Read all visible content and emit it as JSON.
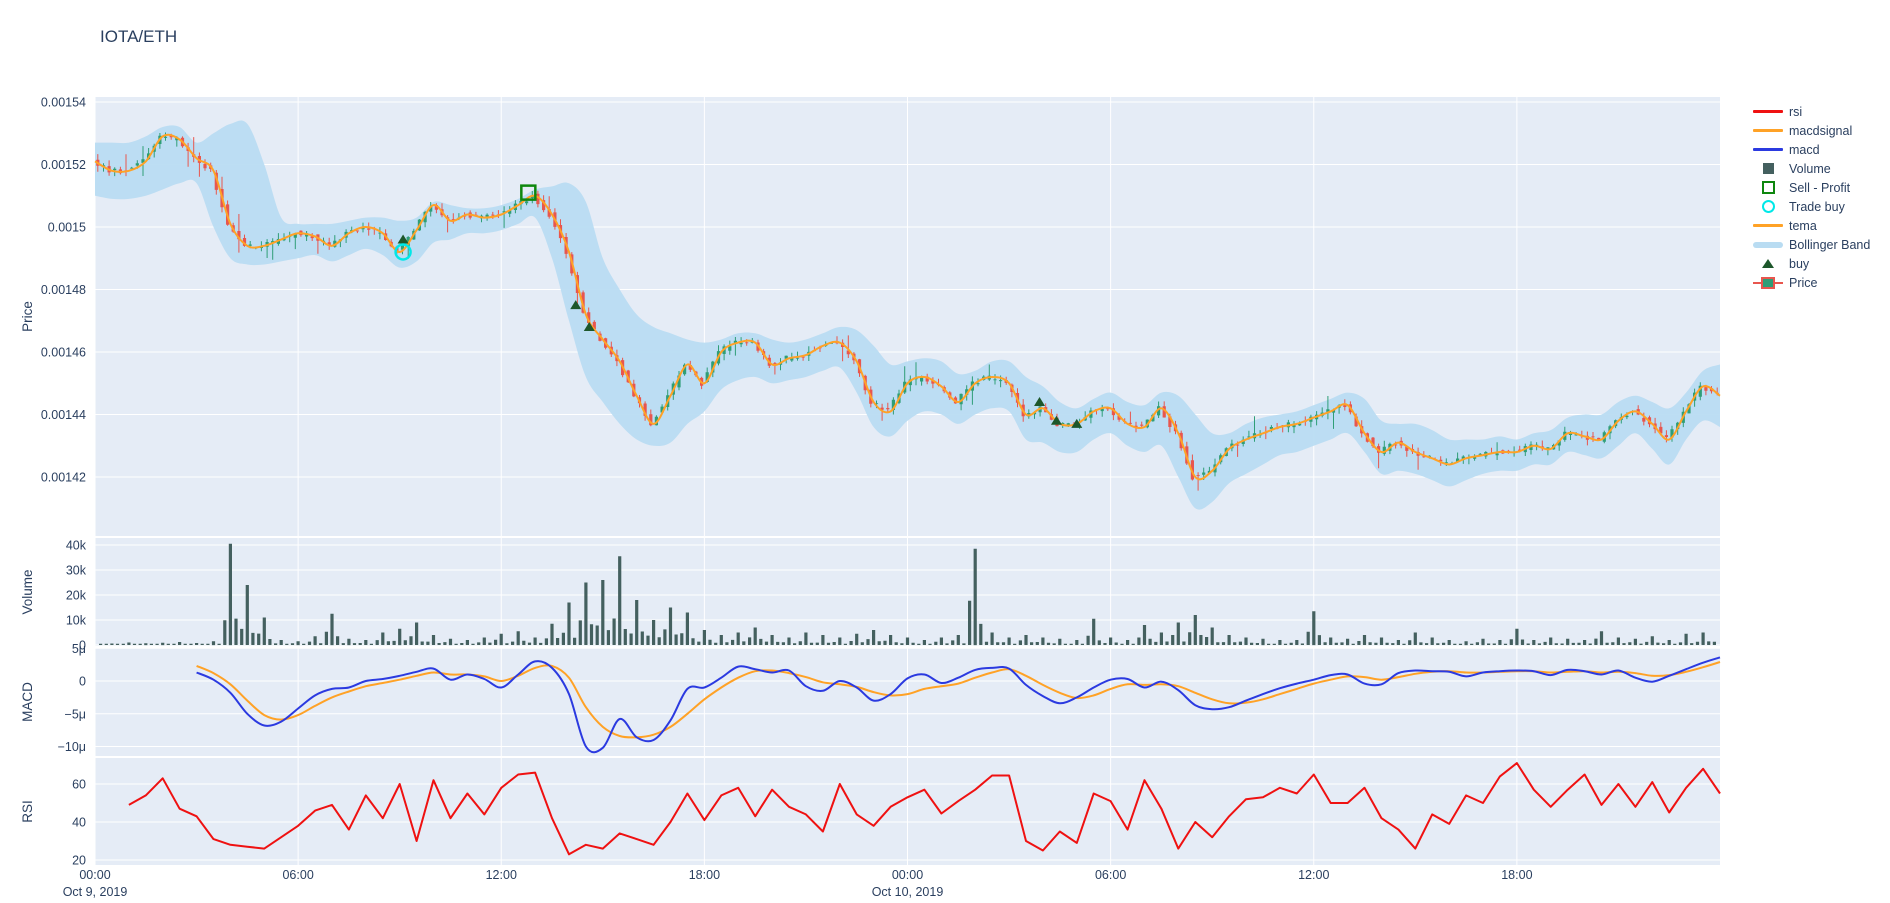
{
  "title": "IOTA/ETH",
  "colors": {
    "text": "#2a3f5f",
    "panel_bg": "#E5ECF6",
    "grid": "#ffffff",
    "candle_up": "#2f9e77",
    "candle_down": "#e8564e",
    "tema": "#ffa226",
    "macd": "#2b3ae0",
    "macdsignal": "#ffa226",
    "rsi": "#ef1111",
    "volume_bar": "#44605f",
    "bollinger": "#b9dcf2",
    "buy_marker": "#1d572b",
    "sell_marker": "#0e870e",
    "trade_buy_marker": "#00e8e8"
  },
  "legend": {
    "items": [
      {
        "label": "rsi",
        "type": "line",
        "color": "#ef1111"
      },
      {
        "label": "macdsignal",
        "type": "line",
        "color": "#ffa226"
      },
      {
        "label": "macd",
        "type": "line",
        "color": "#2b3ae0"
      },
      {
        "label": "Volume",
        "type": "square-filled",
        "color": "#44605f"
      },
      {
        "label": "Sell - Profit",
        "type": "square-open",
        "color": "#0e870e"
      },
      {
        "label": "Trade buy",
        "type": "circle-open",
        "color": "#00e8e8"
      },
      {
        "label": "tema",
        "type": "line",
        "color": "#ffa226"
      },
      {
        "label": "Bollinger Band",
        "type": "band",
        "color": "#b9dcf2"
      },
      {
        "label": "buy",
        "type": "triangle",
        "color": "#1d572b"
      },
      {
        "label": "Price",
        "type": "candlestick",
        "color": "#2f9e77"
      }
    ]
  },
  "axes": {
    "price": {
      "title": "Price",
      "ticks": [
        {
          "label": "0.00154",
          "micro": 1540
        },
        {
          "label": "0.00152",
          "micro": 1520
        },
        {
          "label": "0.0015",
          "micro": 1500
        },
        {
          "label": "0.00148",
          "micro": 1480
        },
        {
          "label": "0.00146",
          "micro": 1460
        },
        {
          "label": "0.00144",
          "micro": 1440
        },
        {
          "label": "0.00142",
          "micro": 1420
        }
      ]
    },
    "volume": {
      "title": "Volume",
      "ticks": [
        {
          "label": "40k",
          "k": 40
        },
        {
          "label": "30k",
          "k": 30
        },
        {
          "label": "20k",
          "k": 20
        },
        {
          "label": "10k",
          "k": 10
        },
        {
          "label": "0",
          "k": 0
        }
      ]
    },
    "macd": {
      "title": "MACD",
      "ticks": [
        {
          "label": "5μ",
          "v": 5
        },
        {
          "label": "0",
          "v": 0
        },
        {
          "label": "−5μ",
          "v": -5
        },
        {
          "label": "−10μ",
          "v": -10
        }
      ]
    },
    "rsi": {
      "title": "RSI",
      "ticks": [
        {
          "label": "60",
          "v": 60
        },
        {
          "label": "40",
          "v": 40
        },
        {
          "label": "20",
          "v": 20
        }
      ]
    },
    "x": {
      "ticks": [
        {
          "hour": 0,
          "label": "00:00"
        },
        {
          "hour": 6,
          "label": "06:00"
        },
        {
          "hour": 12,
          "label": "12:00"
        },
        {
          "hour": 18,
          "label": "18:00"
        },
        {
          "hour": 24,
          "label": "00:00"
        },
        {
          "hour": 30,
          "label": "06:00"
        },
        {
          "hour": 36,
          "label": "12:00"
        },
        {
          "hour": 42,
          "label": "18:00"
        }
      ],
      "dates": [
        {
          "hour": 0,
          "label": "Oct 9, 2019"
        },
        {
          "hour": 24,
          "label": "Oct 10, 2019"
        }
      ]
    }
  },
  "chart_data": {
    "type": "candlestick-multi-panel",
    "title": "IOTA/ETH",
    "x_unit": "hours since Oct 9, 2019 00:00",
    "x_range_hours": [
      0,
      48
    ],
    "sample_step_hours": 0.5,
    "price_unit": "1e-6 ETH (micro)",
    "panels": [
      "Price",
      "Volume",
      "MACD",
      "RSI"
    ],
    "price_axis_range_micro": [
      1401,
      1541
    ],
    "volume_axis_range_k": [
      0,
      43
    ],
    "macd_axis_range_micro": [
      -11.5,
      5.2
    ],
    "rsi_axis_range": [
      17,
      74
    ],
    "series": {
      "close_micro": [
        1521,
        1518,
        1518,
        1521,
        1529,
        1528,
        1522,
        1518,
        1501,
        1494,
        1494,
        1496,
        1498,
        1497,
        1494,
        1498,
        1500,
        1498,
        1492,
        1499,
        1507,
        1502,
        1504,
        1503,
        1504,
        1507,
        1510,
        1504,
        1492,
        1472,
        1464,
        1457,
        1446,
        1437,
        1446,
        1456,
        1450,
        1460,
        1463,
        1463,
        1456,
        1458,
        1459,
        1462,
        1463,
        1457,
        1444,
        1441,
        1450,
        1452,
        1449,
        1444,
        1450,
        1452,
        1450,
        1440,
        1442,
        1437,
        1437,
        1441,
        1442,
        1437,
        1436,
        1442,
        1434,
        1420,
        1422,
        1429,
        1432,
        1434,
        1436,
        1437,
        1439,
        1441,
        1443,
        1434,
        1428,
        1431,
        1428,
        1426,
        1424,
        1426,
        1427,
        1428,
        1428,
        1430,
        1429,
        1434,
        1433,
        1432,
        1438,
        1441,
        1437,
        1432,
        1441,
        1449,
        1446
      ],
      "boll_upper_micro": [
        1527,
        1527,
        1527,
        1529,
        1532,
        1532,
        1527,
        1530,
        1533,
        1533,
        1520,
        1503,
        1501,
        1501,
        1501,
        1502,
        1503,
        1503,
        1502,
        1503,
        1508,
        1507,
        1506,
        1506,
        1507,
        1509,
        1512,
        1513,
        1514,
        1508,
        1490,
        1480,
        1472,
        1468,
        1466,
        1464,
        1463,
        1464,
        1466,
        1466,
        1464,
        1463,
        1464,
        1466,
        1468,
        1467,
        1462,
        1456,
        1457,
        1458,
        1457,
        1453,
        1454,
        1457,
        1457,
        1452,
        1449,
        1444,
        1442,
        1445,
        1447,
        1444,
        1443,
        1447,
        1446,
        1440,
        1434,
        1434,
        1437,
        1439,
        1440,
        1441,
        1443,
        1445,
        1447,
        1445,
        1438,
        1437,
        1437,
        1435,
        1432,
        1432,
        1432,
        1433,
        1432,
        1434,
        1435,
        1439,
        1440,
        1440,
        1444,
        1446,
        1444,
        1442,
        1447,
        1454,
        1456
      ],
      "boll_lower_micro": [
        1510,
        1509,
        1509,
        1510,
        1512,
        1514,
        1514,
        1500,
        1490,
        1488,
        1488,
        1489,
        1490,
        1491,
        1489,
        1491,
        1493,
        1491,
        1487,
        1489,
        1495,
        1496,
        1498,
        1498,
        1499,
        1501,
        1503,
        1490,
        1470,
        1452,
        1444,
        1437,
        1432,
        1430,
        1431,
        1437,
        1441,
        1448,
        1451,
        1452,
        1450,
        1451,
        1452,
        1454,
        1455,
        1447,
        1436,
        1433,
        1438,
        1441,
        1440,
        1437,
        1440,
        1442,
        1441,
        1432,
        1431,
        1428,
        1428,
        1432,
        1434,
        1430,
        1428,
        1430,
        1420,
        1410,
        1412,
        1418,
        1421,
        1424,
        1427,
        1428,
        1430,
        1432,
        1434,
        1428,
        1421,
        1422,
        1421,
        1419,
        1417,
        1419,
        1421,
        1422,
        1422,
        1424,
        1424,
        1428,
        1427,
        1426,
        1430,
        1434,
        1429,
        1424,
        1432,
        1438,
        1436
      ],
      "volume_k": [
        0.8,
        0.6,
        1,
        0.7,
        0.9,
        1.2,
        0.8,
        1.5,
        40.5,
        24,
        11,
        2,
        1.5,
        3.5,
        12.5,
        2.5,
        2,
        5,
        6.5,
        9,
        4,
        2.5,
        2,
        3,
        4.5,
        5.5,
        3,
        8.5,
        17,
        25,
        26,
        35.5,
        18,
        10,
        15,
        13,
        6,
        4,
        5,
        7,
        4,
        3,
        5,
        4,
        3,
        4.5,
        6,
        4,
        3,
        2,
        3,
        4,
        38.5,
        5,
        3,
        4,
        3,
        2.5,
        2,
        10.5,
        3,
        2,
        8,
        5,
        9,
        12,
        7,
        4,
        3,
        2.5,
        2,
        2,
        13.5,
        3,
        2.5,
        4,
        3,
        2,
        5,
        3,
        2,
        1.5,
        2.5,
        2,
        6.5,
        2,
        3,
        2.5,
        2,
        5.5,
        3,
        2.5,
        3.5,
        2,
        4.5,
        5,
        3
      ],
      "macd_micro": [
        null,
        null,
        null,
        null,
        null,
        null,
        1.3,
        0.2,
        -1.8,
        -5,
        -6.8,
        -6.2,
        -4.2,
        -2.2,
        -1.2,
        -1,
        0,
        0.3,
        0.8,
        1.4,
        1.9,
        0.2,
        1,
        0.3,
        -1,
        1,
        3,
        2,
        -2,
        -10,
        -10.2,
        -5.8,
        -8.6,
        -9,
        -6,
        -1.2,
        -1,
        0.5,
        2.2,
        1.8,
        1.3,
        1.6,
        -0.8,
        -1.5,
        0,
        -1,
        -3,
        -2,
        0.4,
        1,
        -0.3,
        0.5,
        1.7,
        2,
        1.9,
        -0.6,
        -2.3,
        -3.4,
        -2.5,
        -1,
        0.2,
        0.3,
        -1,
        -0.1,
        -1.4,
        -3.7,
        -4.3,
        -4,
        -3,
        -2,
        -1.1,
        -0.4,
        0.2,
        0.9,
        1,
        -0.4,
        -0.5,
        1.2,
        1.6,
        1.5,
        1.4,
        0.7,
        1.3,
        1.5,
        1.6,
        1.5,
        0.9,
        1.7,
        1.5,
        1,
        1.6,
        0.5,
        -0.1,
        0.8,
        1.8,
        2.8,
        3.6
      ],
      "macdsignal_micro": [
        null,
        null,
        null,
        null,
        null,
        null,
        2.3,
        1.2,
        -0.5,
        -3,
        -5.2,
        -5.9,
        -5.2,
        -3.8,
        -2.5,
        -1.6,
        -0.8,
        -0.3,
        0.2,
        0.8,
        1.3,
        1,
        1,
        0.7,
        0,
        0.8,
        2,
        2.3,
        0.5,
        -4,
        -7,
        -8.4,
        -8.6,
        -8.2,
        -7,
        -5,
        -2.8,
        -1,
        0.5,
        1.5,
        1.6,
        1.2,
        0.6,
        -0.2,
        -0.5,
        -0.9,
        -1.7,
        -2.2,
        -2,
        -1.2,
        -0.8,
        -0.4,
        0.5,
        1.3,
        1.8,
        0.8,
        -0.6,
        -1.8,
        -2.6,
        -2.2,
        -1.2,
        -0.5,
        -0.6,
        -0.5,
        -0.8,
        -1.8,
        -2.8,
        -3.4,
        -3.3,
        -2.8,
        -2,
        -1.2,
        -0.4,
        0.2,
        0.7,
        0.6,
        0.2,
        0.6,
        1.1,
        1.4,
        1.5,
        1.3,
        1.3,
        1.4,
        1.5,
        1.5,
        1.3,
        1.4,
        1.5,
        1.3,
        1.4,
        1.2,
        0.8,
        0.9,
        1.4,
        2.1,
        2.9
      ],
      "rsi": [
        null,
        null,
        49,
        54,
        63,
        47,
        43,
        31,
        28,
        27,
        26,
        32,
        38,
        46,
        49,
        36,
        54,
        42,
        60,
        30,
        62,
        42,
        55,
        44,
        58,
        65,
        66,
        42,
        23,
        28,
        26,
        34,
        31,
        28,
        40,
        55,
        41,
        54,
        58,
        43,
        57,
        48,
        44,
        35,
        60,
        44,
        38,
        48,
        53,
        57,
        44.5,
        51,
        57,
        64.5,
        64.5,
        30,
        25,
        35,
        29,
        55,
        51,
        36,
        62,
        47,
        26,
        40,
        32,
        43,
        52,
        53,
        58,
        55,
        65,
        50,
        50,
        58,
        42,
        36,
        26,
        44,
        39,
        54,
        50,
        64,
        71,
        57,
        48,
        57,
        65,
        49,
        60,
        48,
        61,
        45,
        58,
        68,
        55
      ]
    },
    "markers": {
      "trade_buy": [
        {
          "t": 9.1,
          "price_micro": 1492
        }
      ],
      "buy": [
        {
          "t": 9.1,
          "price_micro": 1496
        },
        {
          "t": 14.2,
          "price_micro": 1475
        },
        {
          "t": 14.6,
          "price_micro": 1468
        },
        {
          "t": 27.9,
          "price_micro": 1444
        },
        {
          "t": 28.4,
          "price_micro": 1438
        },
        {
          "t": 29.0,
          "price_micro": 1437
        }
      ],
      "sell_profit": [
        {
          "t": 12.8,
          "price_micro": 1511
        }
      ]
    }
  }
}
